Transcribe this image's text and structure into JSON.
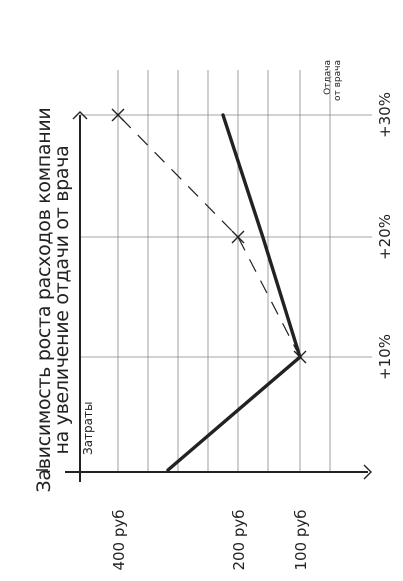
{
  "chart_data": {
    "type": "line",
    "title": "Зависимость роста расходов компании на увеличение отдачи от врача",
    "xlabel": "Отдача от врача",
    "ylabel": "Затраты",
    "categories": [
      "+10%",
      "+20%",
      "+30%"
    ],
    "y_ticks": [
      "100 руб",
      "200 руб",
      "400 руб"
    ],
    "ylim": [
      0,
      450
    ],
    "grid": true,
    "series": [
      {
        "name": "",
        "style": "solid",
        "x": [
          "+10%",
          "+20%",
          "+30%"
        ],
        "values": [
          100,
          160,
          225
        ]
      },
      {
        "name": "",
        "style": "dashed",
        "x": [
          "+10%",
          "+20%",
          "+30%"
        ],
        "values": [
          100,
          200,
          400
        ]
      }
    ]
  }
}
